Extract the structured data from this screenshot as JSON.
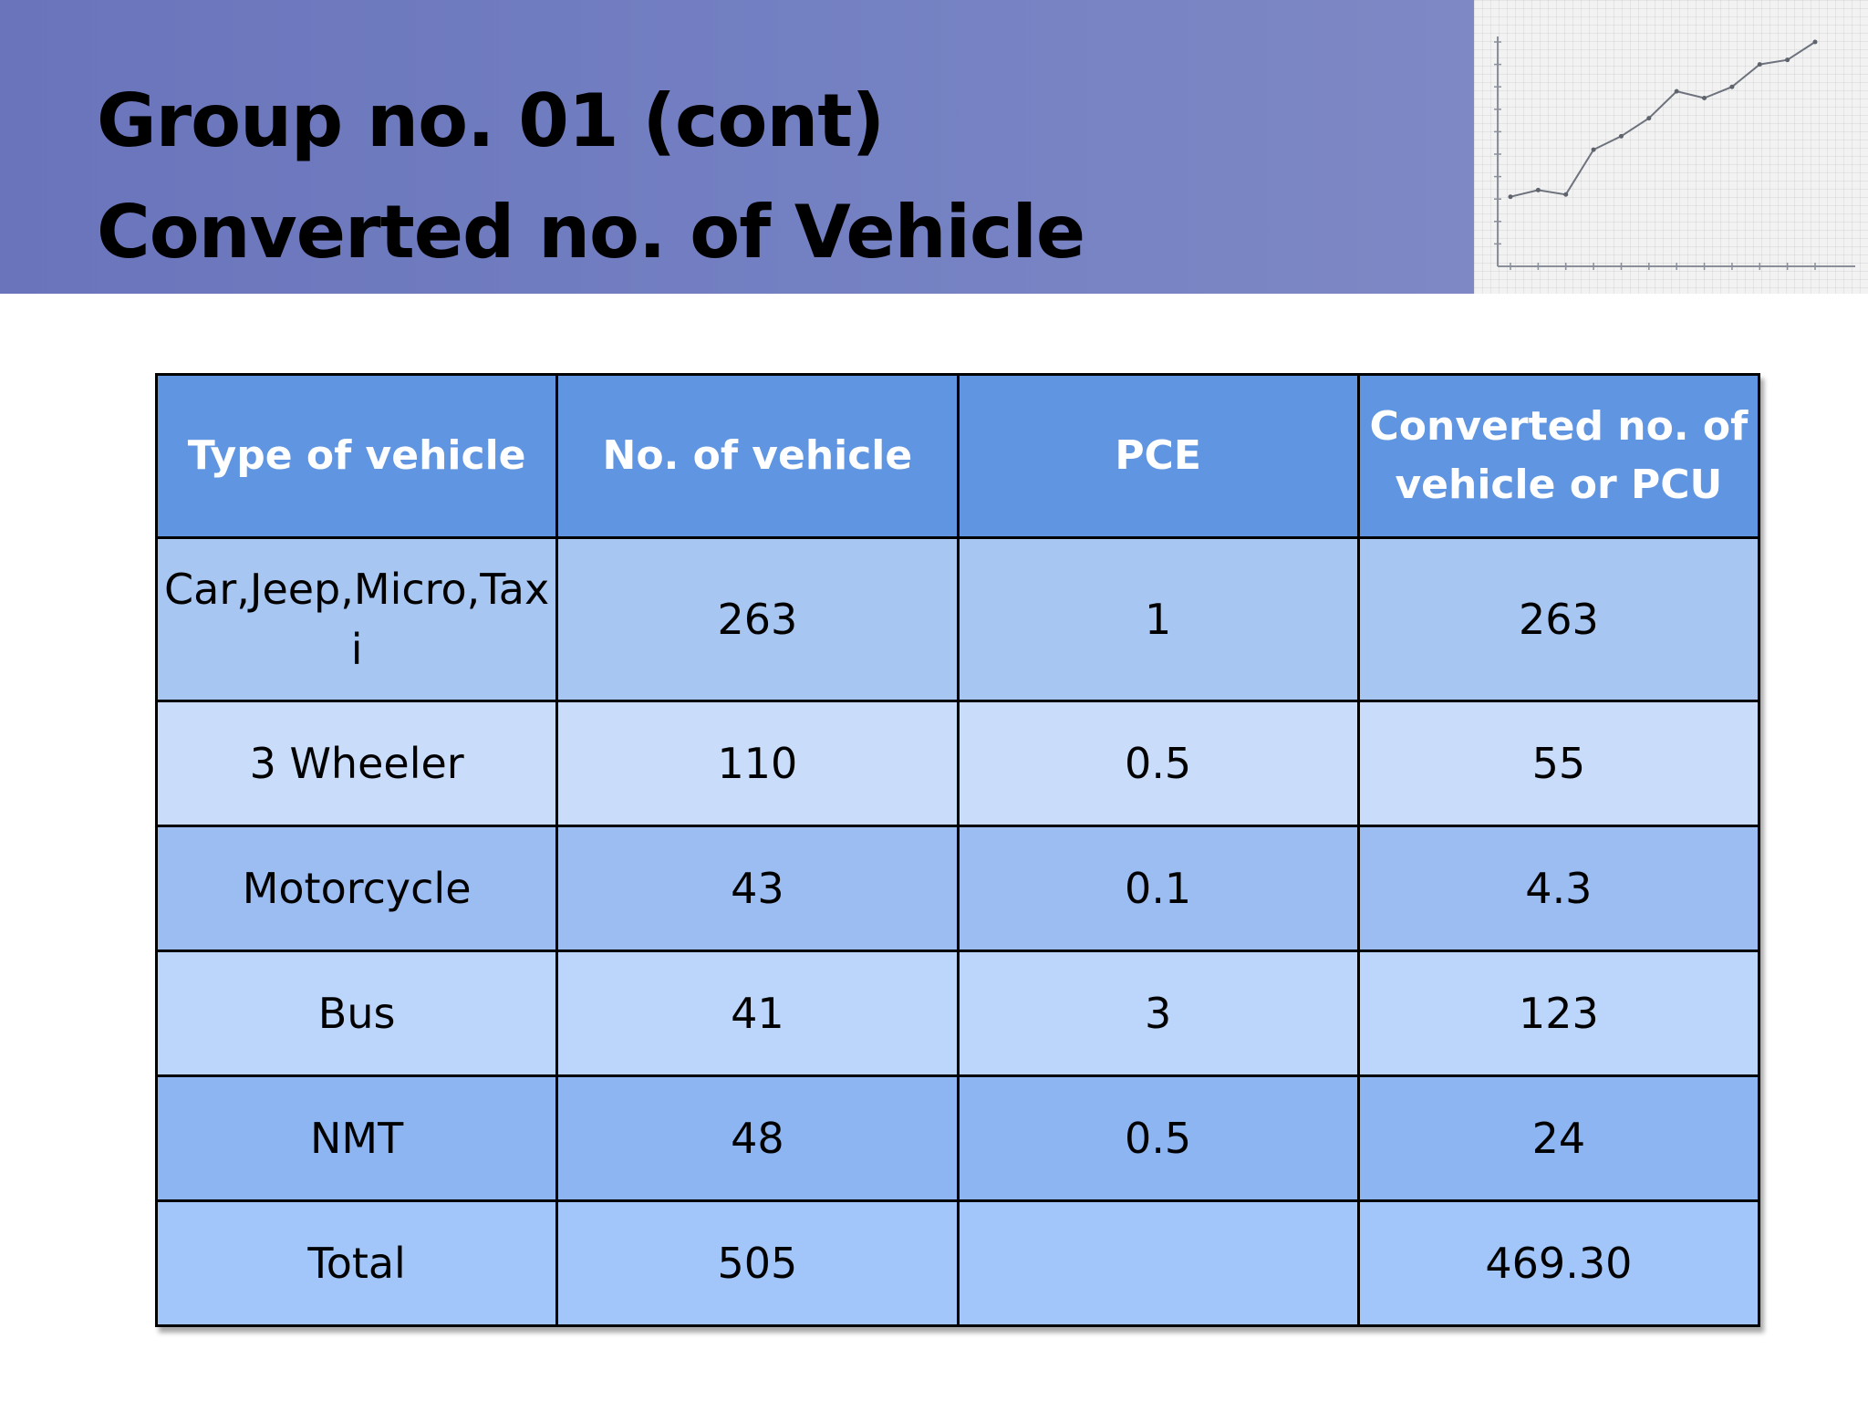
{
  "slide": {
    "title_line1": "Group no. 01 (cont)",
    "title_line2": "Converted no. of Vehicle"
  },
  "thumbnail": {
    "description_icon": "line-graph-photo",
    "series_values": [
      31,
      34,
      32,
      52,
      58,
      66,
      78,
      75,
      80,
      90,
      92,
      100
    ]
  },
  "table": {
    "headers": [
      "Type of vehicle",
      "No. of vehicle",
      "PCE",
      "Converted no. of vehicle or PCU"
    ],
    "rows": [
      [
        "Car,Jeep,Micro,Taxi",
        "263",
        "1",
        "263"
      ],
      [
        "3 Wheeler",
        "110",
        "0.5",
        "55"
      ],
      [
        "Motorcycle",
        "43",
        "0.1",
        "4.3"
      ],
      [
        "Bus",
        "41",
        "3",
        "123"
      ],
      [
        "NMT",
        "48",
        "0.5",
        "24"
      ],
      [
        "Total",
        "505",
        "",
        "469.30"
      ]
    ]
  },
  "colors": {
    "header_band": "#7380c2",
    "table_header": "#6095e2",
    "row_dark": "#9cbdf1",
    "row_light": "#c9ddfb"
  }
}
